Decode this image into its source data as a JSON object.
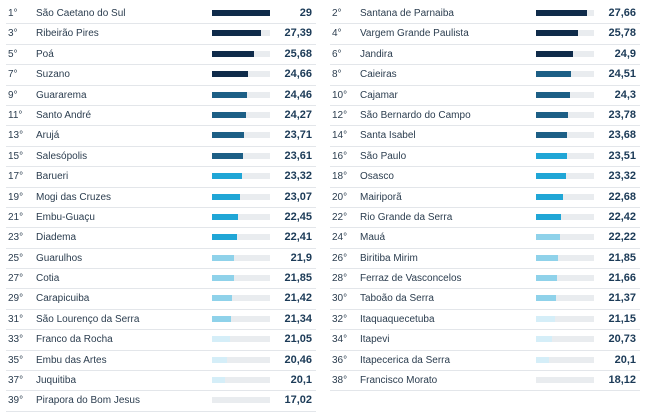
{
  "colors": {
    "tier1": "#0f2b4a",
    "tier2": "#1d5f86",
    "tier3": "#20a6d6",
    "tier4": "#8fd2ea",
    "tier5": "#d5eef8"
  },
  "left": [
    {
      "rank": "1°",
      "name": "São Caetano do Sul",
      "value": "29",
      "fill": 1.0,
      "tier": "tier1"
    },
    {
      "rank": "3°",
      "name": "Ribeirão Pires",
      "value": "27,39",
      "fill": 0.85,
      "tier": "tier1"
    },
    {
      "rank": "5°",
      "name": "Poá",
      "value": "25,68",
      "fill": 0.72,
      "tier": "tier1"
    },
    {
      "rank": "7°",
      "name": "Suzano",
      "value": "24,66",
      "fill": 0.62,
      "tier": "tier1"
    },
    {
      "rank": "9°",
      "name": "Guararema",
      "value": "24,46",
      "fill": 0.6,
      "tier": "tier2"
    },
    {
      "rank": "11°",
      "name": "Santo André",
      "value": "24,27",
      "fill": 0.58,
      "tier": "tier2"
    },
    {
      "rank": "13°",
      "name": "Arujá",
      "value": "23,71",
      "fill": 0.55,
      "tier": "tier2"
    },
    {
      "rank": "15°",
      "name": "Salesópolis",
      "value": "23,61",
      "fill": 0.54,
      "tier": "tier2"
    },
    {
      "rank": "17°",
      "name": "Barueri",
      "value": "23,32",
      "fill": 0.51,
      "tier": "tier3"
    },
    {
      "rank": "19°",
      "name": "Mogi das Cruzes",
      "value": "23,07",
      "fill": 0.49,
      "tier": "tier3"
    },
    {
      "rank": "21°",
      "name": "Embu-Guaçu",
      "value": "22,45",
      "fill": 0.44,
      "tier": "tier3"
    },
    {
      "rank": "23°",
      "name": "Diadema",
      "value": "22,41",
      "fill": 0.43,
      "tier": "tier3"
    },
    {
      "rank": "25°",
      "name": "Guarulhos",
      "value": "21,9",
      "fill": 0.38,
      "tier": "tier4"
    },
    {
      "rank": "27°",
      "name": "Cotia",
      "value": "21,85",
      "fill": 0.38,
      "tier": "tier4"
    },
    {
      "rank": "29°",
      "name": "Carapicuiba",
      "value": "21,42",
      "fill": 0.34,
      "tier": "tier4"
    },
    {
      "rank": "31°",
      "name": "São Lourenço da Serra",
      "value": "21,34",
      "fill": 0.33,
      "tier": "tier4"
    },
    {
      "rank": "33°",
      "name": "Franco da Rocha",
      "value": "21,05",
      "fill": 0.31,
      "tier": "tier5"
    },
    {
      "rank": "35°",
      "name": "Embu das Artes",
      "value": "20,46",
      "fill": 0.26,
      "tier": "tier5"
    },
    {
      "rank": "37°",
      "name": "Juquitiba",
      "value": "20,1",
      "fill": 0.22,
      "tier": "tier5"
    },
    {
      "rank": "39°",
      "name": "Pirapora do Bom Jesus",
      "value": "17,02",
      "fill": 0.0,
      "tier": "tier5"
    }
  ],
  "right": [
    {
      "rank": "2°",
      "name": "Santana de Parnaiba",
      "value": "27,66",
      "fill": 0.88,
      "tier": "tier1"
    },
    {
      "rank": "4°",
      "name": "Vargem Grande Paulista",
      "value": "25,78",
      "fill": 0.73,
      "tier": "tier1"
    },
    {
      "rank": "6°",
      "name": "Jandira",
      "value": "24,9",
      "fill": 0.64,
      "tier": "tier1"
    },
    {
      "rank": "8°",
      "name": "Caieiras",
      "value": "24,51",
      "fill": 0.61,
      "tier": "tier2"
    },
    {
      "rank": "10°",
      "name": "Cajamar",
      "value": "24,3",
      "fill": 0.59,
      "tier": "tier2"
    },
    {
      "rank": "12°",
      "name": "São Bernardo do Campo",
      "value": "23,78",
      "fill": 0.55,
      "tier": "tier2"
    },
    {
      "rank": "14°",
      "name": "Santa Isabel",
      "value": "23,68",
      "fill": 0.54,
      "tier": "tier2"
    },
    {
      "rank": "16°",
      "name": "São Paulo",
      "value": "23,51",
      "fill": 0.53,
      "tier": "tier3"
    },
    {
      "rank": "18°",
      "name": "Osasco",
      "value": "23,32",
      "fill": 0.51,
      "tier": "tier3"
    },
    {
      "rank": "20°",
      "name": "Mairiporã",
      "value": "22,68",
      "fill": 0.46,
      "tier": "tier3"
    },
    {
      "rank": "22°",
      "name": "Rio Grande da Serra",
      "value": "22,42",
      "fill": 0.43,
      "tier": "tier3"
    },
    {
      "rank": "24°",
      "name": "Mauá",
      "value": "22,22",
      "fill": 0.41,
      "tier": "tier4"
    },
    {
      "rank": "26°",
      "name": "Biritiba Mirim",
      "value": "21,85",
      "fill": 0.38,
      "tier": "tier4"
    },
    {
      "rank": "28°",
      "name": "Ferraz de Vasconcelos",
      "value": "21,66",
      "fill": 0.36,
      "tier": "tier4"
    },
    {
      "rank": "30°",
      "name": "Taboão da Serra",
      "value": "21,37",
      "fill": 0.34,
      "tier": "tier4"
    },
    {
      "rank": "32°",
      "name": "Itaquaquecetuba",
      "value": "21,15",
      "fill": 0.32,
      "tier": "tier5"
    },
    {
      "rank": "34°",
      "name": "Itapevi",
      "value": "20,73",
      "fill": 0.28,
      "tier": "tier5"
    },
    {
      "rank": "36°",
      "name": "Itapecerica da Serra",
      "value": "20,1",
      "fill": 0.22,
      "tier": "tier5"
    },
    {
      "rank": "38°",
      "name": "Francisco Morato",
      "value": "18,12",
      "fill": 0.0,
      "tier": "tier5"
    }
  ]
}
